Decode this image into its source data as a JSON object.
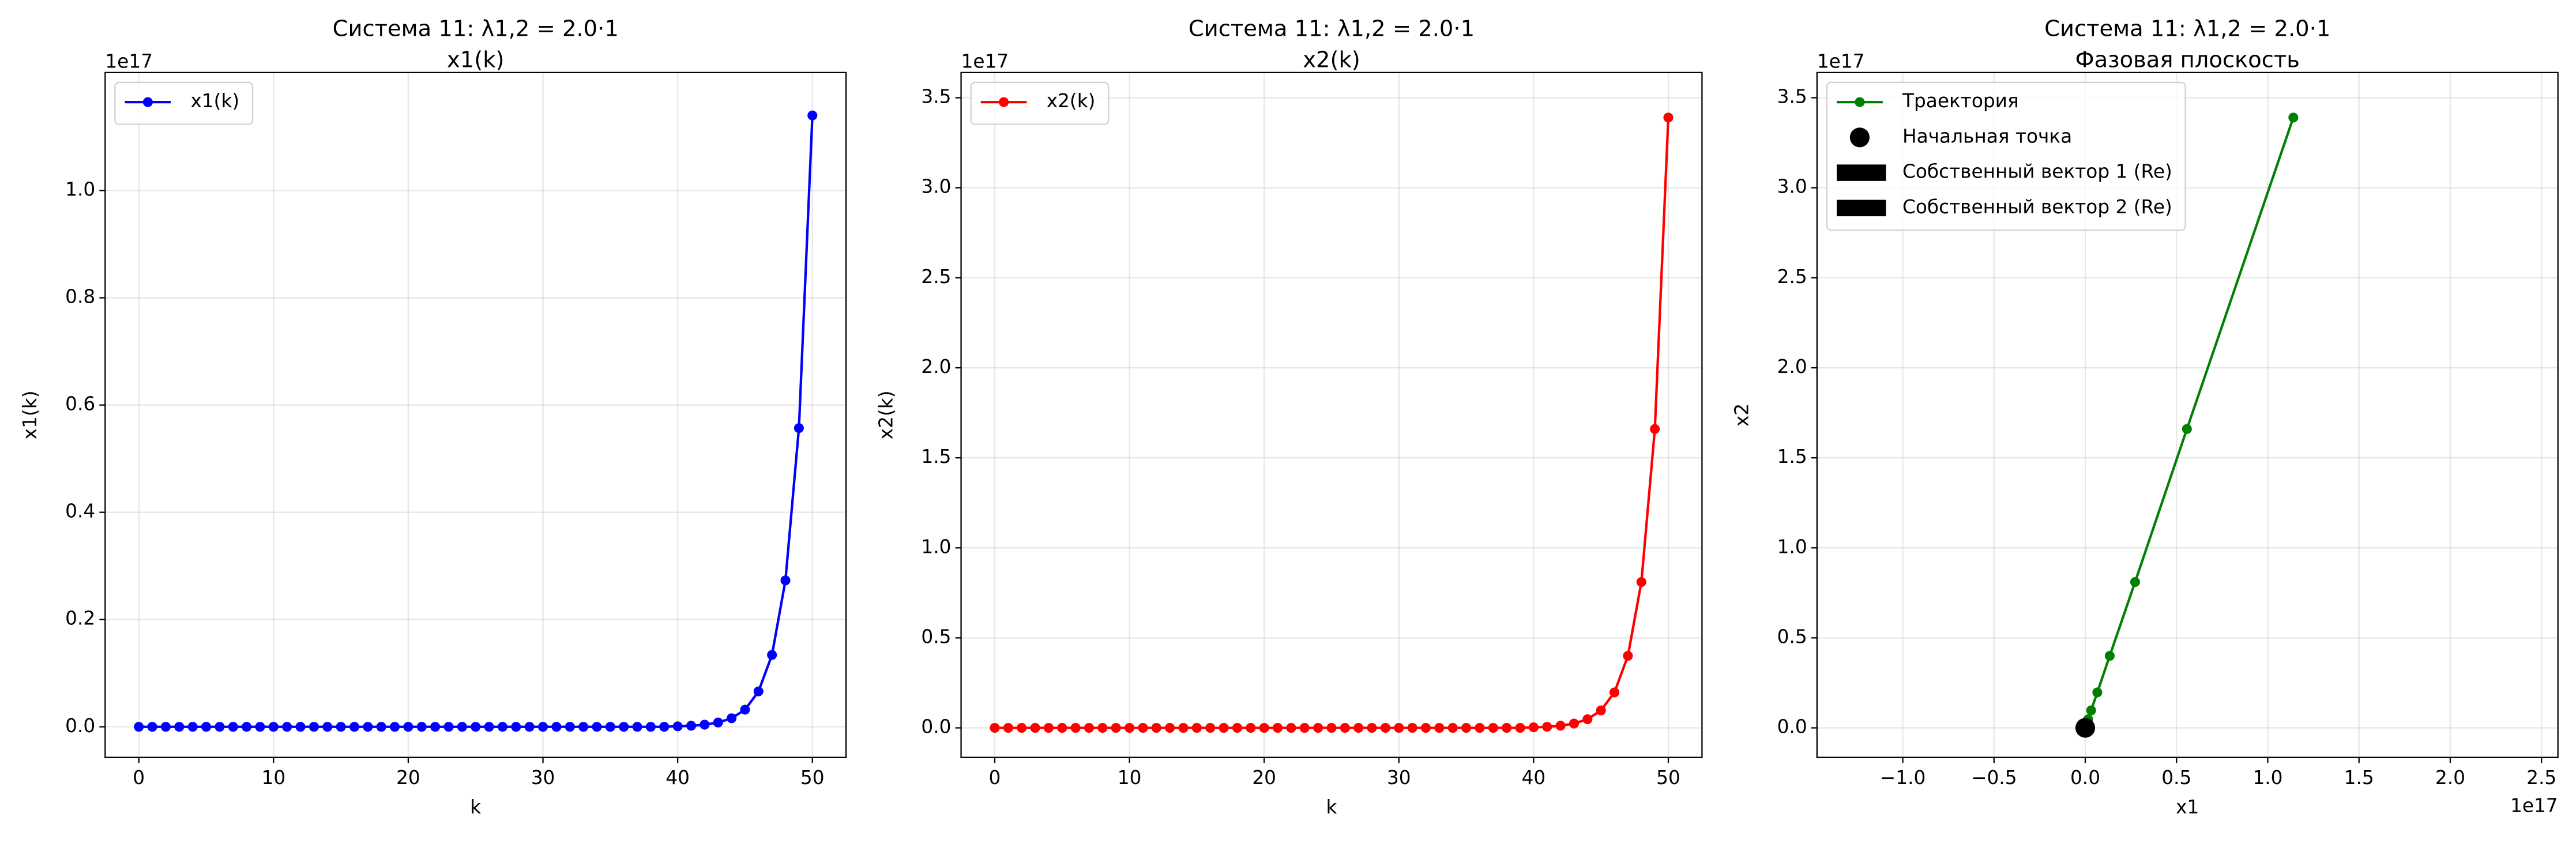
{
  "chart_data": [
    {
      "type": "line",
      "title": "Система 11: λ1,2 = 2.0·1",
      "subtitle": "x1(k)",
      "xlabel": "k",
      "ylabel": "x1(k)",
      "y_offset_text": "1e17",
      "x": [
        0,
        1,
        2,
        3,
        4,
        5,
        6,
        7,
        8,
        9,
        10,
        11,
        12,
        13,
        14,
        15,
        16,
        17,
        18,
        19,
        20,
        21,
        22,
        23,
        24,
        25,
        26,
        27,
        28,
        29,
        30,
        31,
        32,
        33,
        34,
        35,
        36,
        37,
        38,
        39,
        40,
        41,
        42,
        43,
        44,
        45,
        46,
        47,
        48,
        49,
        50
      ],
      "series": [
        {
          "name": "x1(k)",
          "color": "#0000ff",
          "values": [
            0,
            0,
            0,
            0,
            0,
            0,
            0,
            0,
            0,
            0,
            0,
            0,
            0,
            0,
            0,
            0,
            0,
            0,
            0,
            0,
            0,
            0,
            0,
            0,
            0,
            0,
            0,
            0,
            0,
            0,
            0,
            0,
            0,
            0,
            0,
            0,
            0,
            0,
            0,
            0,
            0.001,
            0.002,
            0.004,
            0.008,
            0.016,
            0.032,
            0.066,
            0.134,
            0.273,
            0.557,
            1.14
          ]
        }
      ],
      "xlim": [
        -2.5,
        52.5
      ],
      "ylim": [
        -0.057,
        1.22
      ],
      "xticks": [
        0,
        10,
        20,
        30,
        40,
        50
      ],
      "yticks": [
        {
          "value": 0,
          "label": "0.0"
        },
        {
          "value": 0.2,
          "label": "0.2"
        },
        {
          "value": 0.4,
          "label": "0.4"
        },
        {
          "value": 0.6,
          "label": "0.6"
        },
        {
          "value": 0.8,
          "label": "0.8"
        },
        {
          "value": 1.0,
          "label": "1.0"
        }
      ],
      "grid": true,
      "legend": "upper left"
    },
    {
      "type": "line",
      "title": "Система 11: λ1,2 = 2.0·1",
      "subtitle": "x2(k)",
      "xlabel": "k",
      "ylabel": "x2(k)",
      "y_offset_text": "1e17",
      "x": [
        0,
        1,
        2,
        3,
        4,
        5,
        6,
        7,
        8,
        9,
        10,
        11,
        12,
        13,
        14,
        15,
        16,
        17,
        18,
        19,
        20,
        21,
        22,
        23,
        24,
        25,
        26,
        27,
        28,
        29,
        30,
        31,
        32,
        33,
        34,
        35,
        36,
        37,
        38,
        39,
        40,
        41,
        42,
        43,
        44,
        45,
        46,
        47,
        48,
        49,
        50
      ],
      "series": [
        {
          "name": "x2(k)",
          "color": "#ff0000",
          "values": [
            0,
            0,
            0,
            0,
            0,
            0,
            0,
            0,
            0,
            0,
            0,
            0,
            0,
            0,
            0,
            0,
            0,
            0,
            0,
            0,
            0,
            0,
            0,
            0,
            0,
            0,
            0,
            0,
            0,
            0,
            0,
            0,
            0,
            0,
            0,
            0,
            0,
            0,
            0,
            0,
            0.003,
            0.006,
            0.012,
            0.024,
            0.048,
            0.097,
            0.197,
            0.4,
            0.81,
            1.66,
            3.39
          ]
        }
      ],
      "xlim": [
        -2.5,
        52.5
      ],
      "ylim": [
        -0.164,
        3.64
      ],
      "xticks": [
        0,
        10,
        20,
        30,
        40,
        50
      ],
      "yticks": [
        {
          "value": 0,
          "label": "0.0"
        },
        {
          "value": 0.5,
          "label": "0.5"
        },
        {
          "value": 1.0,
          "label": "1.0"
        },
        {
          "value": 1.5,
          "label": "1.5"
        },
        {
          "value": 2.0,
          "label": "2.0"
        },
        {
          "value": 2.5,
          "label": "2.5"
        },
        {
          "value": 3.0,
          "label": "3.0"
        },
        {
          "value": 3.5,
          "label": "3.5"
        }
      ],
      "grid": true,
      "legend": "upper left"
    },
    {
      "type": "phase",
      "title": "Система 11: λ1,2 = 2.0·1",
      "subtitle": "Фазовая плоскость",
      "xlabel": "x1",
      "ylabel": "x2",
      "y_offset_text": "1e17",
      "x_offset_text": "1e17",
      "x": [
        0,
        0,
        0,
        0,
        0,
        0,
        0,
        0,
        0,
        0,
        0,
        0,
        0,
        0,
        0,
        0,
        0,
        0,
        0,
        0,
        0,
        0,
        0,
        0,
        0,
        0,
        0,
        0,
        0,
        0,
        0,
        0,
        0,
        0,
        0,
        0,
        0,
        0,
        0,
        0,
        0.001,
        0.002,
        0.004,
        0.008,
        0.016,
        0.032,
        0.066,
        0.134,
        0.273,
        0.557,
        1.14
      ],
      "series": [
        {
          "name": "Траектория",
          "color": "#008000",
          "values": [
            0,
            0,
            0,
            0,
            0,
            0,
            0,
            0,
            0,
            0,
            0,
            0,
            0,
            0,
            0,
            0,
            0,
            0,
            0,
            0,
            0,
            0,
            0,
            0,
            0,
            0,
            0,
            0,
            0,
            0,
            0,
            0,
            0,
            0,
            0,
            0,
            0,
            0,
            0,
            0,
            0.003,
            0.006,
            0.012,
            0.024,
            0.048,
            0.097,
            0.197,
            0.4,
            0.81,
            1.66,
            3.39
          ]
        }
      ],
      "start_point": {
        "name": "Начальная точка",
        "x": 0,
        "y": 0,
        "color": "#000000"
      },
      "vectors": [
        {
          "name": "Собственный вектор 1 (Re)",
          "color": "#000000"
        },
        {
          "name": "Собственный вектор 2 (Re)",
          "color": "#000000"
        }
      ],
      "xlim": [
        -1.47,
        2.59
      ],
      "ylim": [
        -0.164,
        3.64
      ],
      "xticks": [
        {
          "value": -1.0,
          "label": "−1.0"
        },
        {
          "value": -0.5,
          "label": "−0.5"
        },
        {
          "value": 0,
          "label": "0.0"
        },
        {
          "value": 0.5,
          "label": "0.5"
        },
        {
          "value": 1.0,
          "label": "1.0"
        },
        {
          "value": 1.5,
          "label": "1.5"
        },
        {
          "value": 2.0,
          "label": "2.0"
        },
        {
          "value": 2.5,
          "label": "2.5"
        }
      ],
      "yticks": [
        {
          "value": 0,
          "label": "0.0"
        },
        {
          "value": 0.5,
          "label": "0.5"
        },
        {
          "value": 1.0,
          "label": "1.0"
        },
        {
          "value": 1.5,
          "label": "1.5"
        },
        {
          "value": 2.0,
          "label": "2.0"
        },
        {
          "value": 2.5,
          "label": "2.5"
        },
        {
          "value": 3.0,
          "label": "3.0"
        },
        {
          "value": 3.5,
          "label": "3.5"
        }
      ],
      "grid": true,
      "legend": "upper left"
    }
  ]
}
